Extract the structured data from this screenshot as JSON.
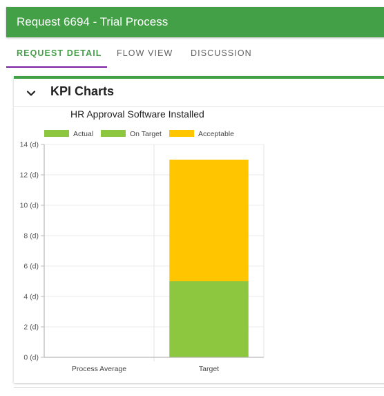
{
  "header": {
    "title": "Request 6694 - Trial Process"
  },
  "tabs": [
    {
      "label": "REQUEST DETAIL",
      "active": true
    },
    {
      "label": "FLOW VIEW",
      "active": false
    },
    {
      "label": "DISCUSSION",
      "active": false
    }
  ],
  "card": {
    "title": "KPI Charts",
    "expand_icon": "chevron-down-icon"
  },
  "colors": {
    "header": "#43a047",
    "tab_indicator": "#7b1fa2",
    "actual": "#8dc63f",
    "on_target": "#8dc63f",
    "acceptable": "#ffc600"
  },
  "chart_data": {
    "type": "bar",
    "stacked": true,
    "title": "HR Approval Software Installed",
    "categories": [
      "Process Average",
      "Target"
    ],
    "series": [
      {
        "name": "Actual",
        "color": "#8dc63f",
        "values": [
          0,
          0
        ]
      },
      {
        "name": "On Target",
        "color": "#8dc63f",
        "values": [
          0,
          5
        ]
      },
      {
        "name": "Acceptable",
        "color": "#ffc600",
        "values": [
          0,
          8
        ]
      }
    ],
    "ylim": [
      0,
      14
    ],
    "yticks": [
      0,
      2,
      4,
      6,
      8,
      10,
      12,
      14
    ],
    "ytick_labels": [
      "0 (d)",
      "2 (d)",
      "4 (d)",
      "6 (d)",
      "8 (d)",
      "10 (d)",
      "12 (d)",
      "14 (d)"
    ],
    "grid": true,
    "legend_position": "top"
  }
}
